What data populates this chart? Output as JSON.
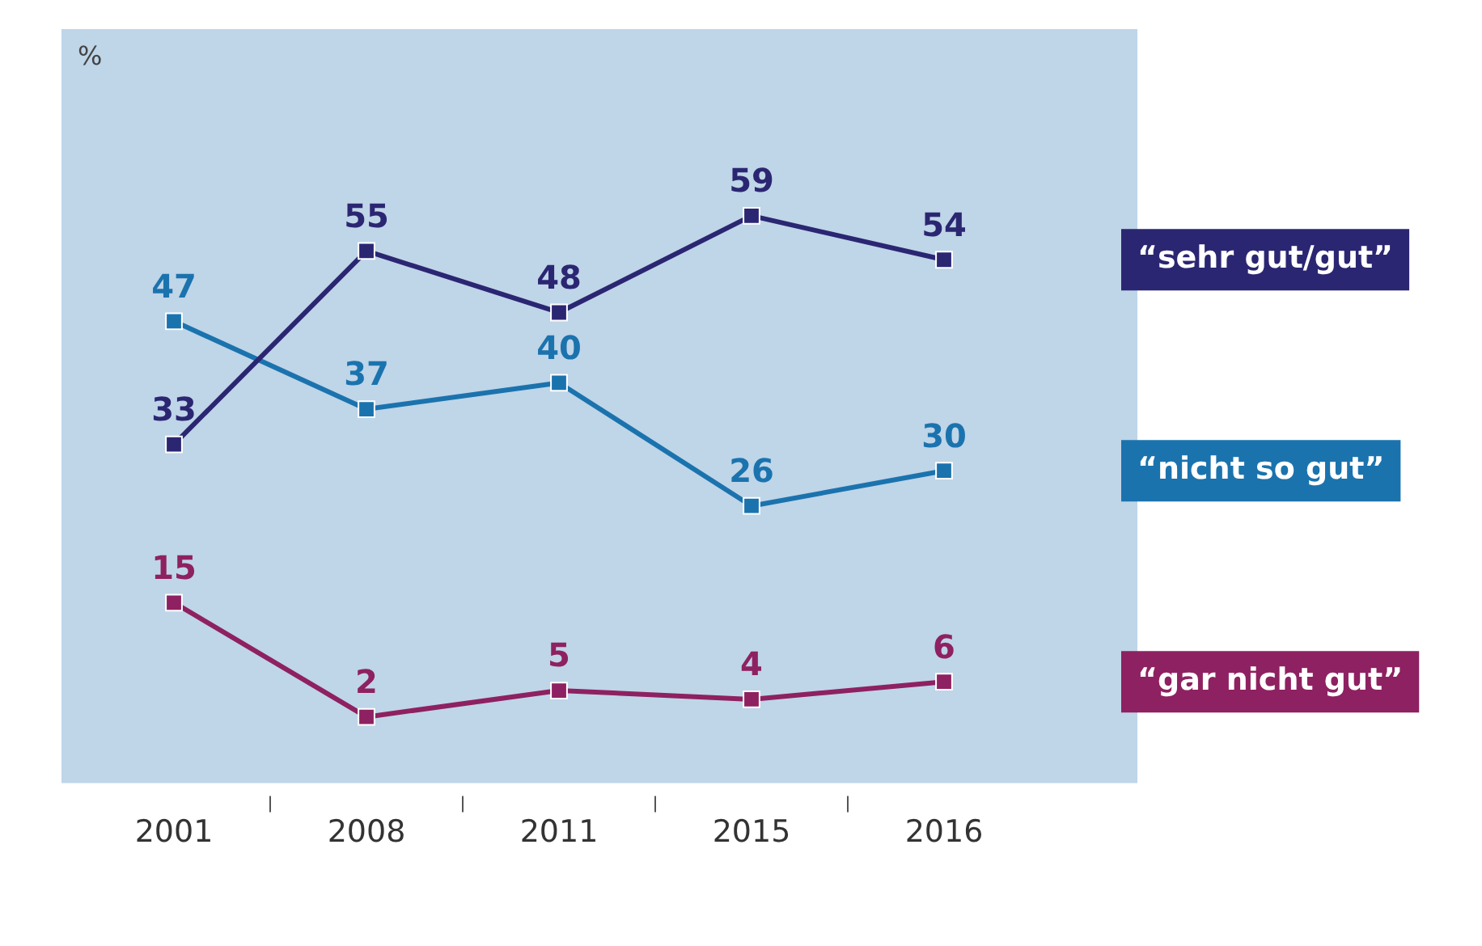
{
  "chart_data": {
    "type": "line",
    "annotations": [
      "%"
    ],
    "categories": [
      "2001",
      "2008",
      "2011",
      "2015",
      "2016"
    ],
    "series": [
      {
        "name": "“sehr gut/gut”",
        "color": "#2b2672",
        "values": [
          33,
          55,
          48,
          59,
          54
        ]
      },
      {
        "name": "“nicht so gut”",
        "color": "#1b73ae",
        "values": [
          47,
          37,
          40,
          26,
          30
        ]
      },
      {
        "name": "“gar nicht gut”",
        "color": "#8e2161",
        "values": [
          15,
          2,
          5,
          4,
          6
        ]
      }
    ],
    "marker": "square",
    "line_style": "solid",
    "data_labels": true,
    "legend": "right",
    "grid": false
  }
}
